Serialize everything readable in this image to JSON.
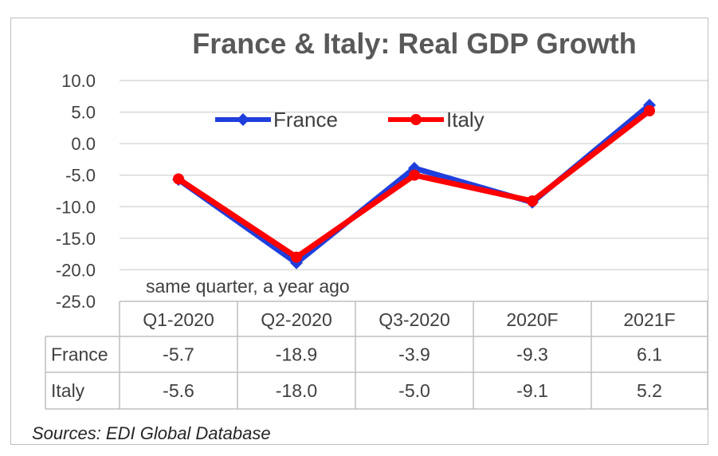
{
  "chart_data": {
    "type": "line",
    "title": "France & Italy: Real GDP Growth",
    "categories": [
      "Q1-2020",
      "Q2-2020",
      "Q3-2020",
      "2020F",
      "2021F"
    ],
    "category_note": "same quarter, a year ago",
    "series": [
      {
        "name": "France",
        "values": [
          -5.7,
          -18.9,
          -3.9,
          -9.3,
          6.1
        ],
        "color": "#1f3fdc"
      },
      {
        "name": "Italy",
        "values": [
          -5.6,
          -18.0,
          -5.0,
          -9.1,
          5.2
        ],
        "color": "#ff0000"
      }
    ],
    "ylim": [
      -25.0,
      10.0
    ],
    "yticks": [
      "10.0",
      "5.0",
      "0.0",
      "-5.0",
      "-10.0",
      "-15.0",
      "-20.0",
      "-25.0"
    ],
    "table": [
      {
        "label": "France",
        "cells": [
          "-5.7",
          "-18.9",
          "-3.9",
          "-9.3",
          "6.1"
        ]
      },
      {
        "label": "Italy",
        "cells": [
          "-5.6",
          "-18.0",
          "-5.0",
          "-9.1",
          "5.2"
        ]
      }
    ],
    "grid": true,
    "legend_position": "top"
  },
  "footer": {
    "source": "Sources: EDI Global Database"
  }
}
